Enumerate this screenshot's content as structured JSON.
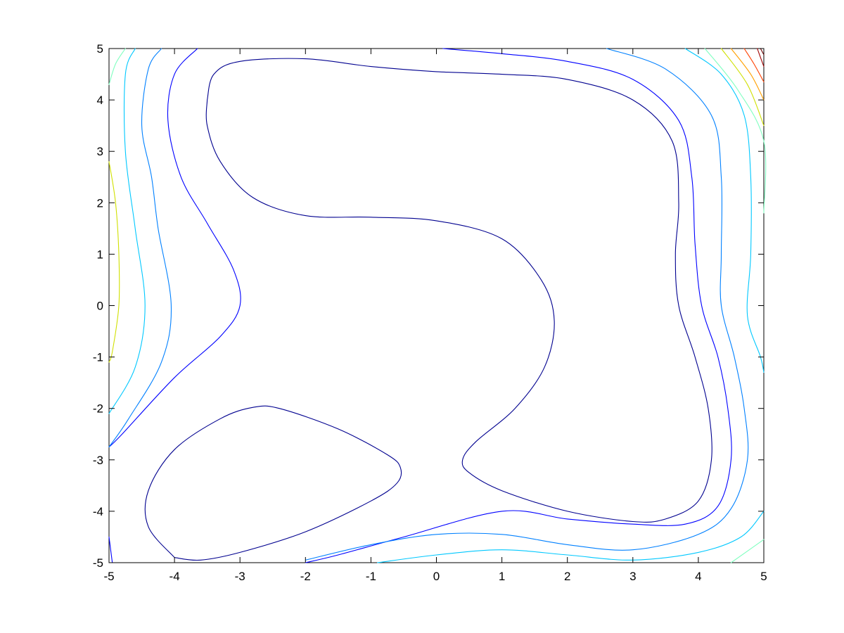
{
  "chart_data": {
    "type": "contour",
    "title": "",
    "xlabel": "",
    "ylabel": "",
    "xlim": [
      -5,
      5
    ],
    "ylim": [
      -5,
      5
    ],
    "x_ticks": [
      -5,
      -4,
      -3,
      -2,
      -1,
      0,
      1,
      2,
      3,
      4,
      5
    ],
    "y_ticks": [
      -5,
      -4,
      -3,
      -2,
      -1,
      0,
      1,
      2,
      3,
      4,
      5
    ],
    "x_tick_labels": [
      "-5",
      "-4",
      "-3",
      "-2",
      "-1",
      "0",
      "1",
      "2",
      "3",
      "4",
      "5"
    ],
    "y_tick_labels": [
      "-5",
      "-4",
      "-3",
      "-2",
      "-1",
      "0",
      "1",
      "2",
      "3",
      "4",
      "5"
    ],
    "grid": false,
    "legend": "none",
    "colormap": "jet",
    "contours": [
      {
        "level": 1,
        "color": "#00008f",
        "closed": true,
        "points": [
          [
            -3.5,
            4.0
          ],
          [
            -3.4,
            4.5
          ],
          [
            -3.0,
            4.75
          ],
          [
            -2.0,
            4.8
          ],
          [
            -1.0,
            4.65
          ],
          [
            0.0,
            4.55
          ],
          [
            1.0,
            4.5
          ],
          [
            2.0,
            4.4
          ],
          [
            3.0,
            4.0
          ],
          [
            3.6,
            3.2
          ],
          [
            3.7,
            2.0
          ],
          [
            3.65,
            1.0
          ],
          [
            3.7,
            0.0
          ],
          [
            3.95,
            -1.0
          ],
          [
            4.15,
            -2.0
          ],
          [
            4.2,
            -3.0
          ],
          [
            4.0,
            -3.8
          ],
          [
            3.5,
            -4.15
          ],
          [
            3.0,
            -4.2
          ],
          [
            2.0,
            -4.0
          ],
          [
            1.0,
            -3.6
          ],
          [
            0.5,
            -3.25
          ],
          [
            0.4,
            -3.0
          ],
          [
            0.6,
            -2.65
          ],
          [
            1.2,
            -2.0
          ],
          [
            1.65,
            -1.2
          ],
          [
            1.8,
            -0.3
          ],
          [
            1.6,
            0.5
          ],
          [
            1.0,
            1.3
          ],
          [
            0.0,
            1.65
          ],
          [
            -1.0,
            1.72
          ],
          [
            -2.0,
            1.75
          ],
          [
            -2.8,
            2.1
          ],
          [
            -3.3,
            2.8
          ],
          [
            -3.5,
            3.5
          ],
          [
            -3.5,
            4.0
          ]
        ]
      },
      {
        "level": 1,
        "color": "#00008f",
        "closed": true,
        "points": [
          [
            -4.0,
            -4.9
          ],
          [
            -3.6,
            -4.95
          ],
          [
            -3.0,
            -4.8
          ],
          [
            -2.0,
            -4.4
          ],
          [
            -1.0,
            -3.8
          ],
          [
            -0.6,
            -3.45
          ],
          [
            -0.55,
            -3.15
          ],
          [
            -0.75,
            -2.9
          ],
          [
            -1.5,
            -2.4
          ],
          [
            -2.4,
            -2.0
          ],
          [
            -2.8,
            -1.98
          ],
          [
            -3.3,
            -2.2
          ],
          [
            -4.0,
            -2.8
          ],
          [
            -4.4,
            -3.6
          ],
          [
            -4.4,
            -4.3
          ],
          [
            -4.0,
            -4.9
          ]
        ]
      },
      {
        "level": 2,
        "color": "#0000ff",
        "closed": false,
        "points": [
          [
            -3.65,
            5.0
          ],
          [
            -4.0,
            4.5
          ],
          [
            -4.1,
            3.6
          ],
          [
            -3.9,
            2.5
          ],
          [
            -3.5,
            1.6
          ],
          [
            -3.1,
            0.7
          ],
          [
            -3.0,
            0.0
          ],
          [
            -3.3,
            -0.6
          ],
          [
            -4.0,
            -1.4
          ],
          [
            -4.8,
            -2.5
          ],
          [
            -5.0,
            -2.75
          ]
        ]
      },
      {
        "level": 2,
        "color": "#0000ff",
        "closed": false,
        "points": [
          [
            0.1,
            5.0
          ],
          [
            1.0,
            4.9
          ],
          [
            2.0,
            4.75
          ],
          [
            3.0,
            4.4
          ],
          [
            3.7,
            3.6
          ],
          [
            3.9,
            2.5
          ],
          [
            3.95,
            1.2
          ],
          [
            4.05,
            0.0
          ],
          [
            4.3,
            -1.0
          ],
          [
            4.45,
            -2.0
          ],
          [
            4.5,
            -3.0
          ],
          [
            4.3,
            -3.9
          ],
          [
            3.8,
            -4.25
          ],
          [
            3.0,
            -4.25
          ],
          [
            2.0,
            -4.15
          ],
          [
            1.0,
            -4.0
          ],
          [
            -0.5,
            -4.5
          ],
          [
            -1.5,
            -4.85
          ],
          [
            -2.0,
            -5.0
          ]
        ]
      },
      {
        "level": 2,
        "color": "#0000ff",
        "closed": false,
        "points": [
          [
            -4.95,
            -5.0
          ],
          [
            -5.0,
            -4.5
          ]
        ]
      },
      {
        "level": 3,
        "color": "#0080ff",
        "closed": false,
        "points": [
          [
            -4.2,
            5.0
          ],
          [
            -4.4,
            4.6
          ],
          [
            -4.5,
            3.5
          ],
          [
            -4.35,
            2.5
          ],
          [
            -4.25,
            1.5
          ],
          [
            -4.05,
            0.0
          ],
          [
            -4.2,
            -1.1
          ],
          [
            -4.7,
            -2.2
          ],
          [
            -5.0,
            -2.75
          ]
        ]
      },
      {
        "level": 3,
        "color": "#0080ff",
        "closed": false,
        "points": [
          [
            2.6,
            5.0
          ],
          [
            3.5,
            4.6
          ],
          [
            4.2,
            3.7
          ],
          [
            4.35,
            2.5
          ],
          [
            4.35,
            1.0
          ],
          [
            4.35,
            0.0
          ],
          [
            4.55,
            -1.0
          ],
          [
            4.7,
            -2.0
          ],
          [
            4.75,
            -3.0
          ],
          [
            4.5,
            -3.95
          ],
          [
            4.0,
            -4.45
          ],
          [
            3.0,
            -4.75
          ],
          [
            2.0,
            -4.65
          ],
          [
            1.0,
            -4.45
          ],
          [
            0.0,
            -4.45
          ],
          [
            -1.0,
            -4.65
          ],
          [
            -2.0,
            -4.95
          ]
        ]
      },
      {
        "level": 4,
        "color": "#00c8ff",
        "closed": false,
        "points": [
          [
            -4.6,
            5.0
          ],
          [
            -4.75,
            4.5
          ],
          [
            -4.75,
            3.0
          ],
          [
            -4.6,
            1.5
          ],
          [
            -4.45,
            0.0
          ],
          [
            -4.6,
            -1.2
          ],
          [
            -5.0,
            -2.1
          ]
        ]
      },
      {
        "level": 4,
        "color": "#00c8ff",
        "closed": false,
        "points": [
          [
            3.8,
            5.0
          ],
          [
            4.35,
            4.5
          ],
          [
            4.7,
            3.7
          ],
          [
            4.8,
            2.5
          ],
          [
            4.8,
            1.0
          ],
          [
            4.75,
            -0.2
          ],
          [
            4.95,
            -1.0
          ],
          [
            5.0,
            -1.3
          ]
        ]
      },
      {
        "level": 4,
        "color": "#00c8ff",
        "closed": false,
        "points": [
          [
            -0.9,
            -5.0
          ],
          [
            0.0,
            -4.85
          ],
          [
            1.0,
            -4.75
          ],
          [
            2.0,
            -4.85
          ],
          [
            3.0,
            -4.95
          ],
          [
            4.0,
            -4.8
          ],
          [
            4.65,
            -4.5
          ],
          [
            5.0,
            -4.0
          ]
        ]
      },
      {
        "level": 5,
        "color": "#80ffc0",
        "closed": false,
        "points": [
          [
            -5.0,
            4.3
          ],
          [
            -4.9,
            4.7
          ],
          [
            -4.75,
            5.0
          ]
        ]
      },
      {
        "level": 5,
        "color": "#80ffc0",
        "closed": false,
        "points": [
          [
            5.0,
            1.8
          ],
          [
            5.0,
            3.2
          ],
          [
            4.6,
            4.2
          ],
          [
            4.1,
            5.0
          ]
        ]
      },
      {
        "level": 5,
        "color": "#80ffc0",
        "closed": false,
        "points": [
          [
            4.5,
            -5.0
          ],
          [
            5.0,
            -4.55
          ]
        ]
      },
      {
        "level": 6,
        "color": "#d0e000",
        "closed": false,
        "points": [
          [
            -5.0,
            2.8
          ],
          [
            -4.9,
            2.0
          ],
          [
            -4.85,
            1.0
          ],
          [
            -4.85,
            0.0
          ],
          [
            -4.95,
            -0.9
          ],
          [
            -5.0,
            -1.1
          ]
        ]
      },
      {
        "level": 6,
        "color": "#d0e000",
        "closed": false,
        "points": [
          [
            5.0,
            3.5
          ],
          [
            4.75,
            4.3
          ],
          [
            4.35,
            5.0
          ]
        ]
      },
      {
        "level": 7,
        "color": "#ffa000",
        "closed": false,
        "points": [
          [
            5.0,
            4.0
          ],
          [
            4.8,
            4.5
          ],
          [
            4.5,
            5.0
          ]
        ]
      },
      {
        "level": 8,
        "color": "#ff4000",
        "closed": false,
        "points": [
          [
            5.0,
            4.35
          ],
          [
            4.85,
            4.7
          ],
          [
            4.7,
            5.0
          ]
        ]
      },
      {
        "level": 9,
        "color": "#a00000",
        "closed": false,
        "points": [
          [
            5.0,
            4.65
          ],
          [
            4.9,
            5.0
          ]
        ]
      },
      {
        "level": 10,
        "color": "#700000",
        "closed": false,
        "points": [
          [
            5.0,
            4.88
          ],
          [
            4.95,
            5.0
          ]
        ]
      }
    ]
  }
}
